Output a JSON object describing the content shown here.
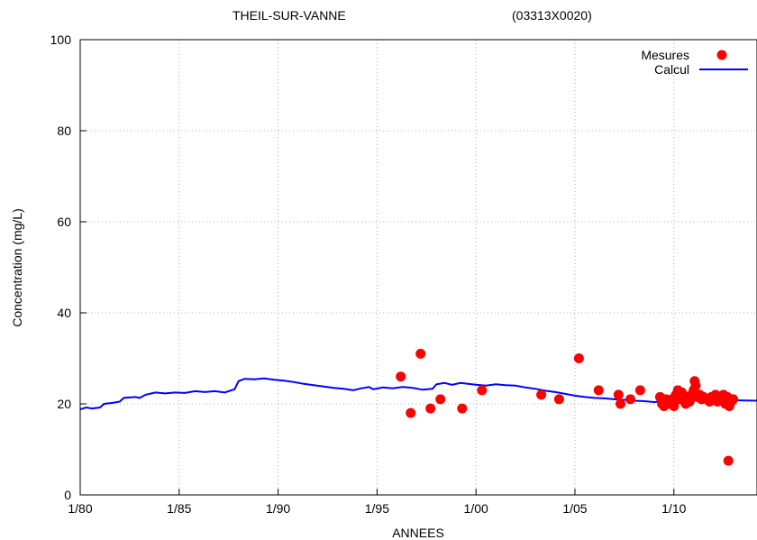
{
  "chart_data": {
    "type": "scatter",
    "title_left": "THEIL-SUR-VANNE",
    "title_right": "(03313X0020)",
    "xlabel": "ANNEES",
    "ylabel": "Concentration (mg/L)",
    "xlim": [
      1980,
      2014.2
    ],
    "ylim": [
      0,
      100
    ],
    "x_ticks": [
      {
        "value": 1980,
        "label": "1/80"
      },
      {
        "value": 1985,
        "label": "1/85"
      },
      {
        "value": 1990,
        "label": "1/90"
      },
      {
        "value": 1995,
        "label": "1/95"
      },
      {
        "value": 2000,
        "label": "1/00"
      },
      {
        "value": 2005,
        "label": "1/05"
      },
      {
        "value": 2010,
        "label": "1/10"
      }
    ],
    "y_ticks": [
      0,
      20,
      40,
      60,
      80,
      100
    ],
    "grid": true,
    "legend_position": "top-right",
    "series": [
      {
        "name": "Mesures",
        "kind": "scatter",
        "color": "#ff0000",
        "points": [
          [
            1996.2,
            26
          ],
          [
            1996.7,
            18
          ],
          [
            1997.2,
            31
          ],
          [
            1997.7,
            19
          ],
          [
            1998.2,
            21
          ],
          [
            1999.3,
            19
          ],
          [
            2000.3,
            23
          ],
          [
            2003.3,
            22
          ],
          [
            2004.2,
            21
          ],
          [
            2005.2,
            30
          ],
          [
            2006.2,
            23
          ],
          [
            2007.2,
            22
          ],
          [
            2007.3,
            20
          ],
          [
            2007.8,
            21
          ],
          [
            2008.3,
            23
          ],
          [
            2009.3,
            21.5
          ],
          [
            2009.4,
            20
          ],
          [
            2009.5,
            19.5
          ],
          [
            2009.6,
            21
          ],
          [
            2009.8,
            20
          ],
          [
            2009.9,
            21
          ],
          [
            2010.0,
            19.5
          ],
          [
            2010.1,
            22
          ],
          [
            2010.2,
            23
          ],
          [
            2010.3,
            21
          ],
          [
            2010.4,
            22.5
          ],
          [
            2010.5,
            21
          ],
          [
            2010.6,
            20
          ],
          [
            2010.7,
            21.5
          ],
          [
            2010.8,
            20.5
          ],
          [
            2010.9,
            22
          ],
          [
            2011.0,
            23
          ],
          [
            2011.05,
            25
          ],
          [
            2011.1,
            24
          ],
          [
            2011.2,
            21.5
          ],
          [
            2011.3,
            22
          ],
          [
            2011.4,
            21
          ],
          [
            2011.5,
            21.5
          ],
          [
            2011.7,
            21
          ],
          [
            2011.8,
            20.5
          ],
          [
            2011.9,
            21.5
          ],
          [
            2012.0,
            21
          ],
          [
            2012.1,
            22
          ],
          [
            2012.2,
            20.5
          ],
          [
            2012.3,
            21.5
          ],
          [
            2012.4,
            21
          ],
          [
            2012.5,
            22
          ],
          [
            2012.6,
            20
          ],
          [
            2012.7,
            21.5
          ],
          [
            2012.75,
            7.5
          ],
          [
            2012.8,
            19.5
          ],
          [
            2012.9,
            20.5
          ],
          [
            2013.0,
            21
          ]
        ]
      },
      {
        "name": "Calcul",
        "kind": "line",
        "color": "#0000ff",
        "points": [
          [
            1980.0,
            18.8
          ],
          [
            1980.3,
            19.2
          ],
          [
            1980.6,
            19.0
          ],
          [
            1981.0,
            19.2
          ],
          [
            1981.2,
            20.0
          ],
          [
            1981.6,
            20.2
          ],
          [
            1982.0,
            20.5
          ],
          [
            1982.2,
            21.3
          ],
          [
            1982.8,
            21.5
          ],
          [
            1983.0,
            21.3
          ],
          [
            1983.3,
            22.0
          ],
          [
            1983.8,
            22.5
          ],
          [
            1984.3,
            22.3
          ],
          [
            1984.8,
            22.5
          ],
          [
            1985.3,
            22.4
          ],
          [
            1985.8,
            22.8
          ],
          [
            1986.3,
            22.6
          ],
          [
            1986.8,
            22.8
          ],
          [
            1987.3,
            22.5
          ],
          [
            1987.8,
            23.2
          ],
          [
            1988.0,
            25.0
          ],
          [
            1988.3,
            25.5
          ],
          [
            1988.8,
            25.4
          ],
          [
            1989.3,
            25.6
          ],
          [
            1989.8,
            25.3
          ],
          [
            1990.3,
            25.1
          ],
          [
            1990.8,
            24.8
          ],
          [
            1991.3,
            24.4
          ],
          [
            1991.8,
            24.1
          ],
          [
            1992.3,
            23.8
          ],
          [
            1992.8,
            23.5
          ],
          [
            1993.3,
            23.3
          ],
          [
            1993.8,
            23.0
          ],
          [
            1994.2,
            23.4
          ],
          [
            1994.6,
            23.7
          ],
          [
            1994.8,
            23.2
          ],
          [
            1995.3,
            23.6
          ],
          [
            1995.8,
            23.4
          ],
          [
            1996.3,
            23.7
          ],
          [
            1996.8,
            23.5
          ],
          [
            1997.3,
            23.1
          ],
          [
            1997.8,
            23.3
          ],
          [
            1998.0,
            24.3
          ],
          [
            1998.4,
            24.6
          ],
          [
            1998.8,
            24.2
          ],
          [
            1999.2,
            24.6
          ],
          [
            1999.6,
            24.4
          ],
          [
            2000.0,
            24.2
          ],
          [
            2000.5,
            24.0
          ],
          [
            2001.0,
            24.3
          ],
          [
            2001.5,
            24.1
          ],
          [
            2002.0,
            24.0
          ],
          [
            2002.5,
            23.6
          ],
          [
            2003.0,
            23.3
          ],
          [
            2003.5,
            22.9
          ],
          [
            2004.0,
            22.6
          ],
          [
            2004.5,
            22.2
          ],
          [
            2005.0,
            21.8
          ],
          [
            2005.5,
            21.5
          ],
          [
            2006.0,
            21.3
          ],
          [
            2006.5,
            21.2
          ],
          [
            2007.0,
            21.0
          ],
          [
            2007.5,
            20.9
          ],
          [
            2008.0,
            20.7
          ],
          [
            2008.5,
            20.6
          ],
          [
            2009.0,
            20.4
          ],
          [
            2009.5,
            20.6
          ],
          [
            2010.0,
            20.5
          ],
          [
            2010.5,
            21.0
          ],
          [
            2011.0,
            20.8
          ],
          [
            2011.5,
            21.0
          ],
          [
            2012.0,
            20.9
          ],
          [
            2012.5,
            20.9
          ],
          [
            2013.0,
            20.8
          ],
          [
            2014.2,
            20.7
          ]
        ]
      }
    ]
  }
}
